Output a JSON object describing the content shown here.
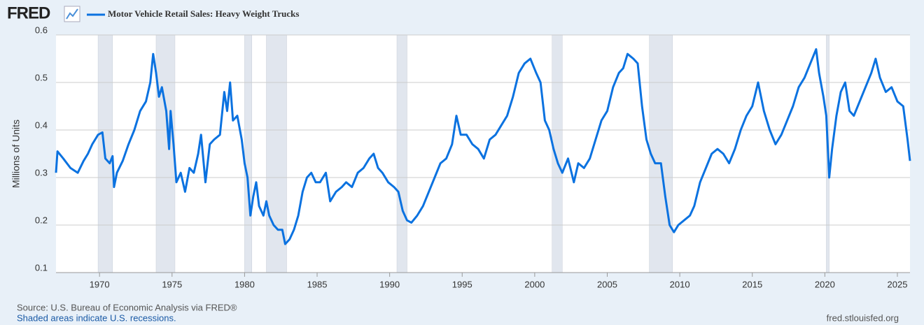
{
  "logo": "FRED",
  "chart_data": {
    "type": "line",
    "title": "Motor Vehicle Retail Sales: Heavy Weight Trucks",
    "y_label": "Millions of Units",
    "source": "Source: U.S. Bureau of Economic Analysis via FRED®",
    "note": "Shaded areas indicate U.S. recessions.",
    "site": "fred.stlouisfed.org",
    "xlim": [
      1967,
      2025.87
    ],
    "xticks": [
      1970,
      1975,
      1980,
      1985,
      1990,
      1995,
      2000,
      2005,
      2010,
      2015,
      2020,
      2025
    ],
    "ylim": [
      0.1,
      0.6
    ],
    "yticks": [
      0.1,
      0.2,
      0.3,
      0.4,
      0.5,
      0.6
    ],
    "grid": true,
    "recessions": [
      [
        1969.9,
        1970.9
      ],
      [
        1973.9,
        1975.2
      ],
      [
        1980.0,
        1980.5
      ],
      [
        1981.5,
        1982.9
      ],
      [
        1990.5,
        1991.2
      ],
      [
        2001.2,
        2001.9
      ],
      [
        2007.9,
        2009.5
      ],
      [
        2020.1,
        2020.3
      ]
    ],
    "series": [
      {
        "name": "Motor Vehicle Retail Sales: Heavy Weight Trucks",
        "color": "#0b72e0",
        "x": [
          1967.0,
          1967.1,
          1967.5,
          1968.0,
          1968.5,
          1968.9,
          1969.2,
          1969.5,
          1969.9,
          1970.2,
          1970.4,
          1970.7,
          1970.9,
          1971.0,
          1971.2,
          1971.6,
          1972.0,
          1972.4,
          1972.8,
          1973.2,
          1973.5,
          1973.7,
          1973.9,
          1974.1,
          1974.3,
          1974.6,
          1974.8,
          1974.9,
          1975.1,
          1975.3,
          1975.6,
          1975.9,
          1976.2,
          1976.5,
          1976.8,
          1977.0,
          1977.3,
          1977.6,
          1977.9,
          1978.3,
          1978.6,
          1978.8,
          1979.0,
          1979.2,
          1979.5,
          1979.8,
          1980.0,
          1980.2,
          1980.4,
          1980.6,
          1980.8,
          1981.0,
          1981.3,
          1981.5,
          1981.7,
          1982.0,
          1982.3,
          1982.6,
          1982.8,
          1983.1,
          1983.4,
          1983.7,
          1984.0,
          1984.3,
          1984.6,
          1984.9,
          1985.2,
          1985.6,
          1985.9,
          1986.3,
          1986.7,
          1987.0,
          1987.4,
          1987.8,
          1988.2,
          1988.6,
          1988.9,
          1989.2,
          1989.5,
          1989.9,
          1990.3,
          1990.6,
          1990.9,
          1991.2,
          1991.5,
          1991.9,
          1992.3,
          1992.7,
          1993.1,
          1993.5,
          1993.9,
          1994.3,
          1994.6,
          1994.9,
          1995.3,
          1995.7,
          1996.1,
          1996.5,
          1996.9,
          1997.3,
          1997.7,
          1998.1,
          1998.5,
          1998.9,
          1999.3,
          1999.7,
          2000.1,
          2000.4,
          2000.7,
          2001.0,
          2001.3,
          2001.6,
          2001.9,
          2002.3,
          2002.7,
          2003.0,
          2003.4,
          2003.8,
          2004.2,
          2004.6,
          2005.0,
          2005.4,
          2005.8,
          2006.1,
          2006.4,
          2006.8,
          2007.1,
          2007.4,
          2007.7,
          2008.0,
          2008.3,
          2008.7,
          2009.0,
          2009.3,
          2009.6,
          2009.9,
          2010.3,
          2010.7,
          2011.0,
          2011.4,
          2011.8,
          2012.2,
          2012.6,
          2013.0,
          2013.4,
          2013.8,
          2014.2,
          2014.6,
          2015.0,
          2015.4,
          2015.8,
          2016.2,
          2016.6,
          2017.0,
          2017.4,
          2017.8,
          2018.2,
          2018.6,
          2019.0,
          2019.4,
          2019.6,
          2019.9,
          2020.1,
          2020.3,
          2020.5,
          2020.8,
          2021.1,
          2021.4,
          2021.7,
          2022.0,
          2022.4,
          2022.8,
          2023.2,
          2023.5,
          2023.8,
          2024.2,
          2024.6,
          2025.0,
          2025.4,
          2025.7,
          2025.87
        ],
        "values": [
          0.31,
          0.355,
          0.34,
          0.32,
          0.31,
          0.335,
          0.35,
          0.37,
          0.39,
          0.395,
          0.34,
          0.33,
          0.345,
          0.28,
          0.31,
          0.335,
          0.37,
          0.4,
          0.44,
          0.46,
          0.5,
          0.56,
          0.52,
          0.47,
          0.49,
          0.44,
          0.36,
          0.44,
          0.37,
          0.29,
          0.31,
          0.27,
          0.32,
          0.31,
          0.35,
          0.39,
          0.29,
          0.37,
          0.38,
          0.39,
          0.48,
          0.44,
          0.5,
          0.42,
          0.43,
          0.38,
          0.33,
          0.3,
          0.22,
          0.26,
          0.29,
          0.24,
          0.22,
          0.25,
          0.22,
          0.2,
          0.19,
          0.19,
          0.16,
          0.17,
          0.19,
          0.22,
          0.27,
          0.3,
          0.31,
          0.29,
          0.29,
          0.31,
          0.25,
          0.27,
          0.28,
          0.29,
          0.28,
          0.31,
          0.32,
          0.34,
          0.35,
          0.32,
          0.31,
          0.29,
          0.28,
          0.27,
          0.23,
          0.21,
          0.205,
          0.22,
          0.24,
          0.27,
          0.3,
          0.33,
          0.34,
          0.37,
          0.43,
          0.39,
          0.39,
          0.37,
          0.36,
          0.34,
          0.38,
          0.39,
          0.41,
          0.43,
          0.47,
          0.52,
          0.54,
          0.55,
          0.52,
          0.5,
          0.42,
          0.4,
          0.36,
          0.33,
          0.31,
          0.34,
          0.29,
          0.33,
          0.32,
          0.34,
          0.38,
          0.42,
          0.44,
          0.49,
          0.52,
          0.53,
          0.56,
          0.55,
          0.54,
          0.45,
          0.38,
          0.35,
          0.33,
          0.33,
          0.26,
          0.2,
          0.185,
          0.2,
          0.21,
          0.22,
          0.24,
          0.29,
          0.32,
          0.35,
          0.36,
          0.35,
          0.33,
          0.36,
          0.4,
          0.43,
          0.45,
          0.5,
          0.44,
          0.4,
          0.37,
          0.39,
          0.42,
          0.45,
          0.49,
          0.51,
          0.54,
          0.57,
          0.52,
          0.47,
          0.43,
          0.3,
          0.36,
          0.43,
          0.48,
          0.5,
          0.44,
          0.43,
          0.46,
          0.49,
          0.52,
          0.55,
          0.51,
          0.48,
          0.49,
          0.46,
          0.45,
          0.38,
          0.335
        ]
      }
    ]
  }
}
